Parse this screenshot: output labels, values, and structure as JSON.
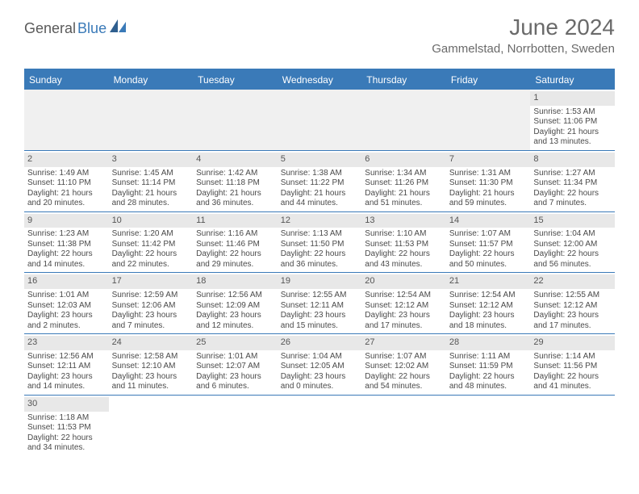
{
  "logo": {
    "text1": "General",
    "text2": "Blue"
  },
  "title": "June 2024",
  "location": "Gammelstad, Norrbotten, Sweden",
  "colors": {
    "accent": "#3a7ab8",
    "header_bg": "#3a7ab8",
    "daynum_bg": "#e8e8e8",
    "text": "#4a4a4a"
  },
  "weekdays": [
    "Sunday",
    "Monday",
    "Tuesday",
    "Wednesday",
    "Thursday",
    "Friday",
    "Saturday"
  ],
  "weeks": [
    [
      null,
      null,
      null,
      null,
      null,
      null,
      {
        "n": "1",
        "sr": "Sunrise: 1:53 AM",
        "ss": "Sunset: 11:06 PM",
        "d1": "Daylight: 21 hours",
        "d2": "and 13 minutes."
      }
    ],
    [
      {
        "n": "2",
        "sr": "Sunrise: 1:49 AM",
        "ss": "Sunset: 11:10 PM",
        "d1": "Daylight: 21 hours",
        "d2": "and 20 minutes."
      },
      {
        "n": "3",
        "sr": "Sunrise: 1:45 AM",
        "ss": "Sunset: 11:14 PM",
        "d1": "Daylight: 21 hours",
        "d2": "and 28 minutes."
      },
      {
        "n": "4",
        "sr": "Sunrise: 1:42 AM",
        "ss": "Sunset: 11:18 PM",
        "d1": "Daylight: 21 hours",
        "d2": "and 36 minutes."
      },
      {
        "n": "5",
        "sr": "Sunrise: 1:38 AM",
        "ss": "Sunset: 11:22 PM",
        "d1": "Daylight: 21 hours",
        "d2": "and 44 minutes."
      },
      {
        "n": "6",
        "sr": "Sunrise: 1:34 AM",
        "ss": "Sunset: 11:26 PM",
        "d1": "Daylight: 21 hours",
        "d2": "and 51 minutes."
      },
      {
        "n": "7",
        "sr": "Sunrise: 1:31 AM",
        "ss": "Sunset: 11:30 PM",
        "d1": "Daylight: 21 hours",
        "d2": "and 59 minutes."
      },
      {
        "n": "8",
        "sr": "Sunrise: 1:27 AM",
        "ss": "Sunset: 11:34 PM",
        "d1": "Daylight: 22 hours",
        "d2": "and 7 minutes."
      }
    ],
    [
      {
        "n": "9",
        "sr": "Sunrise: 1:23 AM",
        "ss": "Sunset: 11:38 PM",
        "d1": "Daylight: 22 hours",
        "d2": "and 14 minutes."
      },
      {
        "n": "10",
        "sr": "Sunrise: 1:20 AM",
        "ss": "Sunset: 11:42 PM",
        "d1": "Daylight: 22 hours",
        "d2": "and 22 minutes."
      },
      {
        "n": "11",
        "sr": "Sunrise: 1:16 AM",
        "ss": "Sunset: 11:46 PM",
        "d1": "Daylight: 22 hours",
        "d2": "and 29 minutes."
      },
      {
        "n": "12",
        "sr": "Sunrise: 1:13 AM",
        "ss": "Sunset: 11:50 PM",
        "d1": "Daylight: 22 hours",
        "d2": "and 36 minutes."
      },
      {
        "n": "13",
        "sr": "Sunrise: 1:10 AM",
        "ss": "Sunset: 11:53 PM",
        "d1": "Daylight: 22 hours",
        "d2": "and 43 minutes."
      },
      {
        "n": "14",
        "sr": "Sunrise: 1:07 AM",
        "ss": "Sunset: 11:57 PM",
        "d1": "Daylight: 22 hours",
        "d2": "and 50 minutes."
      },
      {
        "n": "15",
        "sr": "Sunrise: 1:04 AM",
        "ss": "Sunset: 12:00 AM",
        "d1": "Daylight: 22 hours",
        "d2": "and 56 minutes."
      }
    ],
    [
      {
        "n": "16",
        "sr": "Sunrise: 1:01 AM",
        "ss": "Sunset: 12:03 AM",
        "d1": "Daylight: 23 hours",
        "d2": "and 2 minutes."
      },
      {
        "n": "17",
        "sr": "Sunrise: 12:59 AM",
        "ss": "Sunset: 12:06 AM",
        "d1": "Daylight: 23 hours",
        "d2": "and 7 minutes."
      },
      {
        "n": "18",
        "sr": "Sunrise: 12:56 AM",
        "ss": "Sunset: 12:09 AM",
        "d1": "Daylight: 23 hours",
        "d2": "and 12 minutes."
      },
      {
        "n": "19",
        "sr": "Sunrise: 12:55 AM",
        "ss": "Sunset: 12:11 AM",
        "d1": "Daylight: 23 hours",
        "d2": "and 15 minutes."
      },
      {
        "n": "20",
        "sr": "Sunrise: 12:54 AM",
        "ss": "Sunset: 12:12 AM",
        "d1": "Daylight: 23 hours",
        "d2": "and 17 minutes."
      },
      {
        "n": "21",
        "sr": "Sunrise: 12:54 AM",
        "ss": "Sunset: 12:12 AM",
        "d1": "Daylight: 23 hours",
        "d2": "and 18 minutes."
      },
      {
        "n": "22",
        "sr": "Sunrise: 12:55 AM",
        "ss": "Sunset: 12:12 AM",
        "d1": "Daylight: 23 hours",
        "d2": "and 17 minutes."
      }
    ],
    [
      {
        "n": "23",
        "sr": "Sunrise: 12:56 AM",
        "ss": "Sunset: 12:11 AM",
        "d1": "Daylight: 23 hours",
        "d2": "and 14 minutes."
      },
      {
        "n": "24",
        "sr": "Sunrise: 12:58 AM",
        "ss": "Sunset: 12:10 AM",
        "d1": "Daylight: 23 hours",
        "d2": "and 11 minutes."
      },
      {
        "n": "25",
        "sr": "Sunrise: 1:01 AM",
        "ss": "Sunset: 12:07 AM",
        "d1": "Daylight: 23 hours",
        "d2": "and 6 minutes."
      },
      {
        "n": "26",
        "sr": "Sunrise: 1:04 AM",
        "ss": "Sunset: 12:05 AM",
        "d1": "Daylight: 23 hours",
        "d2": "and 0 minutes."
      },
      {
        "n": "27",
        "sr": "Sunrise: 1:07 AM",
        "ss": "Sunset: 12:02 AM",
        "d1": "Daylight: 22 hours",
        "d2": "and 54 minutes."
      },
      {
        "n": "28",
        "sr": "Sunrise: 1:11 AM",
        "ss": "Sunset: 11:59 PM",
        "d1": "Daylight: 22 hours",
        "d2": "and 48 minutes."
      },
      {
        "n": "29",
        "sr": "Sunrise: 1:14 AM",
        "ss": "Sunset: 11:56 PM",
        "d1": "Daylight: 22 hours",
        "d2": "and 41 minutes."
      }
    ],
    [
      {
        "n": "30",
        "sr": "Sunrise: 1:18 AM",
        "ss": "Sunset: 11:53 PM",
        "d1": "Daylight: 22 hours",
        "d2": "and 34 minutes."
      },
      null,
      null,
      null,
      null,
      null,
      null
    ]
  ]
}
